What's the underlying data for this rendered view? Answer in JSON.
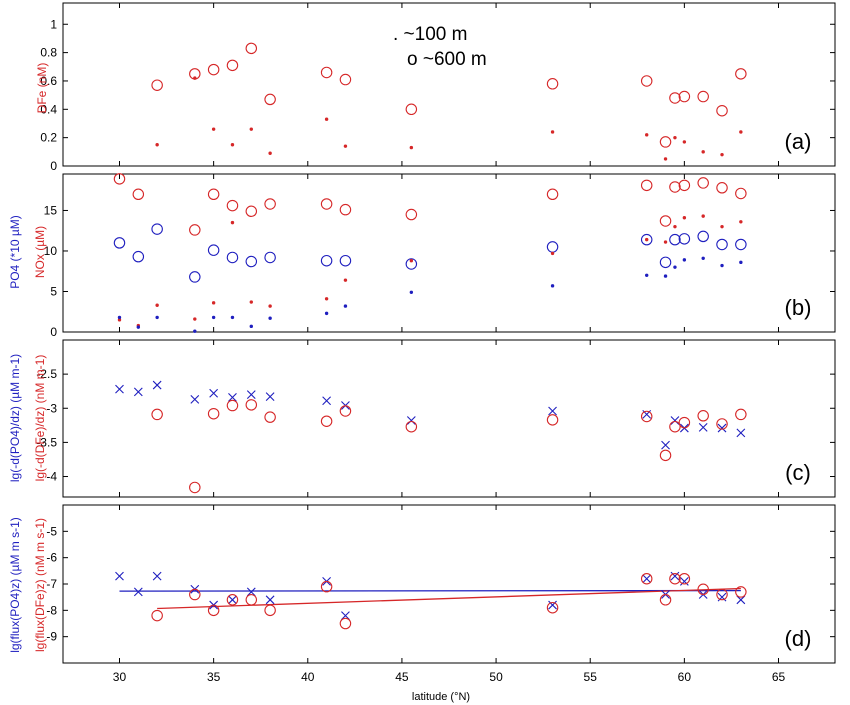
{
  "chart_data": {
    "type": "scatter",
    "xlabel": "latitude (°N)",
    "xlim": [
      27,
      68
    ],
    "xticks": [
      30,
      35,
      40,
      45,
      50,
      55,
      60,
      65
    ],
    "colors": {
      "red": "#d62728",
      "blue": "#1f1fbf"
    },
    "legend": {
      "line1": ". ~100 m",
      "line2": "o ~600 m",
      "placement": "top-center"
    },
    "panels": [
      {
        "id": "a",
        "tag": "(a)",
        "ylabel": "DFe (nM)",
        "ylim": [
          0,
          1.15
        ],
        "yticks": [
          0,
          0.2,
          0.4,
          0.6,
          0.8,
          1
        ],
        "series": [
          {
            "marker": "circle",
            "color": "red",
            "x": [
              32,
              34,
              35,
              36,
              37,
              38,
              41,
              42,
              45.5,
              53,
              58,
              59,
              59.5,
              60,
              61,
              62,
              63
            ],
            "y": [
              0.57,
              0.65,
              0.68,
              0.71,
              0.83,
              0.47,
              0.66,
              0.61,
              0.4,
              0.58,
              0.6,
              0.17,
              0.48,
              0.49,
              0.49,
              0.39,
              0.65
            ]
          },
          {
            "marker": "dot",
            "color": "red",
            "x": [
              32,
              34,
              35,
              36,
              37,
              38,
              41,
              42,
              45.5,
              53,
              58,
              59,
              59.5,
              60,
              61,
              62,
              63
            ],
            "y": [
              0.15,
              0.62,
              0.26,
              0.15,
              0.26,
              0.09,
              0.33,
              0.14,
              0.13,
              0.24,
              0.22,
              0.05,
              0.2,
              0.17,
              0.1,
              0.08,
              0.24
            ]
          }
        ]
      },
      {
        "id": "b",
        "tag": "(b)",
        "ylabel_blue": "PO4 (*10 µM)",
        "ylabel_red": "NOx (µM)",
        "ylim": [
          0,
          19.5
        ],
        "yticks": [
          0,
          5,
          10,
          15
        ],
        "series": [
          {
            "marker": "circle",
            "color": "red",
            "x": [
              30,
              31,
              34,
              35,
              36,
              37,
              38,
              41,
              42,
              45.5,
              53,
              58,
              59,
              59.5,
              60,
              61,
              62,
              63
            ],
            "y": [
              18.9,
              17.0,
              12.6,
              17.0,
              15.6,
              14.9,
              15.8,
              15.8,
              15.1,
              14.5,
              17.0,
              18.1,
              13.7,
              17.9,
              18.1,
              18.4,
              17.8,
              17.1
            ]
          },
          {
            "marker": "circle",
            "color": "blue",
            "x": [
              30,
              31,
              32,
              34,
              35,
              36,
              37,
              38,
              41,
              42,
              45.5,
              53,
              58,
              59,
              59.5,
              60,
              61,
              62,
              63
            ],
            "y": [
              11.0,
              9.3,
              12.7,
              6.8,
              10.1,
              9.2,
              8.7,
              9.2,
              8.8,
              8.8,
              8.4,
              10.5,
              11.4,
              8.6,
              11.4,
              11.5,
              11.8,
              10.8,
              10.8
            ]
          },
          {
            "marker": "dot",
            "color": "red",
            "x": [
              30,
              31,
              32,
              34,
              35,
              36,
              37,
              38,
              41,
              42,
              45.5,
              53,
              58,
              59,
              59.5,
              60,
              61,
              62,
              63
            ],
            "y": [
              1.5,
              0.8,
              3.3,
              1.6,
              3.6,
              13.5,
              3.7,
              3.2,
              4.1,
              6.4,
              8.8,
              9.7,
              11.4,
              11.1,
              13.0,
              14.1,
              14.3,
              13.0,
              13.6
            ]
          },
          {
            "marker": "dot",
            "color": "blue",
            "x": [
              30,
              31,
              32,
              34,
              35,
              36,
              37,
              38,
              41,
              42,
              45.5,
              53,
              58,
              59,
              59.5,
              60,
              61,
              62,
              63
            ],
            "y": [
              1.8,
              0.6,
              1.8,
              0.1,
              1.8,
              1.8,
              0.7,
              1.7,
              2.3,
              3.2,
              4.9,
              5.7,
              7.0,
              6.9,
              8.0,
              8.9,
              9.1,
              8.2,
              8.6
            ]
          }
        ]
      },
      {
        "id": "c",
        "tag": "(c)",
        "ylabel_blue": "lg(-d(PO4)/dz) (µM m-1)",
        "ylabel_red": "lg(-d(DFe)/dz) (nM m-1)",
        "ylim": [
          -4.3,
          -2.0
        ],
        "yticks": [
          -4,
          -3.5,
          -3,
          -2.5
        ],
        "series": [
          {
            "marker": "x",
            "color": "blue",
            "x": [
              30,
              31,
              32,
              34,
              35,
              36,
              37,
              38,
              41,
              42,
              45.5,
              53,
              58,
              59,
              59.5,
              60,
              61,
              62,
              63
            ],
            "y": [
              -2.72,
              -2.76,
              -2.66,
              -2.87,
              -2.78,
              -2.84,
              -2.8,
              -2.83,
              -2.89,
              -2.96,
              -3.18,
              -3.04,
              -3.09,
              -3.54,
              -3.18,
              -3.29,
              -3.28,
              -3.29,
              -3.36
            ]
          },
          {
            "marker": "circle",
            "color": "red",
            "x": [
              32,
              34,
              35,
              36,
              37,
              38,
              41,
              42,
              45.5,
              53,
              58,
              59,
              59.5,
              60,
              61,
              62,
              63
            ],
            "y": [
              -3.09,
              -4.16,
              -3.08,
              -2.96,
              -2.95,
              -3.13,
              -3.19,
              -3.04,
              -3.27,
              -3.17,
              -3.12,
              -3.69,
              -3.27,
              -3.21,
              -3.11,
              -3.23,
              -3.09
            ]
          }
        ]
      },
      {
        "id": "d",
        "tag": "(d)",
        "ylabel_blue": "lg(flux(PO4)z) (µM m s-1)",
        "ylabel_red": "lg(flux(DFe)z) (nM m s-1)",
        "ylim": [
          -10,
          -4
        ],
        "yticks": [
          -9,
          -8,
          -7,
          -6,
          -5
        ],
        "series": [
          {
            "marker": "x",
            "color": "blue",
            "x": [
              30,
              31,
              32,
              34,
              35,
              36,
              37,
              38,
              41,
              42,
              53,
              58,
              59,
              59.5,
              60,
              61,
              62,
              63
            ],
            "y": [
              -6.7,
              -7.3,
              -6.7,
              -7.2,
              -7.8,
              -7.6,
              -7.3,
              -7.6,
              -6.9,
              -8.2,
              -7.8,
              -6.8,
              -7.4,
              -6.7,
              -6.9,
              -7.4,
              -7.5,
              -7.6
            ]
          },
          {
            "marker": "circle",
            "color": "red",
            "x": [
              32,
              34,
              35,
              36,
              37,
              38,
              41,
              42,
              53,
              58,
              59,
              59.5,
              60,
              61,
              62,
              63
            ],
            "y": [
              -8.2,
              -7.4,
              -8.0,
              -7.6,
              -7.6,
              -8.0,
              -7.1,
              -8.5,
              -7.9,
              -6.8,
              -7.6,
              -6.8,
              -6.8,
              -7.2,
              -7.4,
              -7.3
            ]
          }
        ],
        "lines": [
          {
            "color": "blue",
            "x": [
              30,
              63
            ],
            "y": [
              -7.27,
              -7.25
            ]
          },
          {
            "color": "red",
            "x": [
              32,
              63
            ],
            "y": [
              -7.93,
              -7.17
            ]
          }
        ]
      }
    ]
  }
}
